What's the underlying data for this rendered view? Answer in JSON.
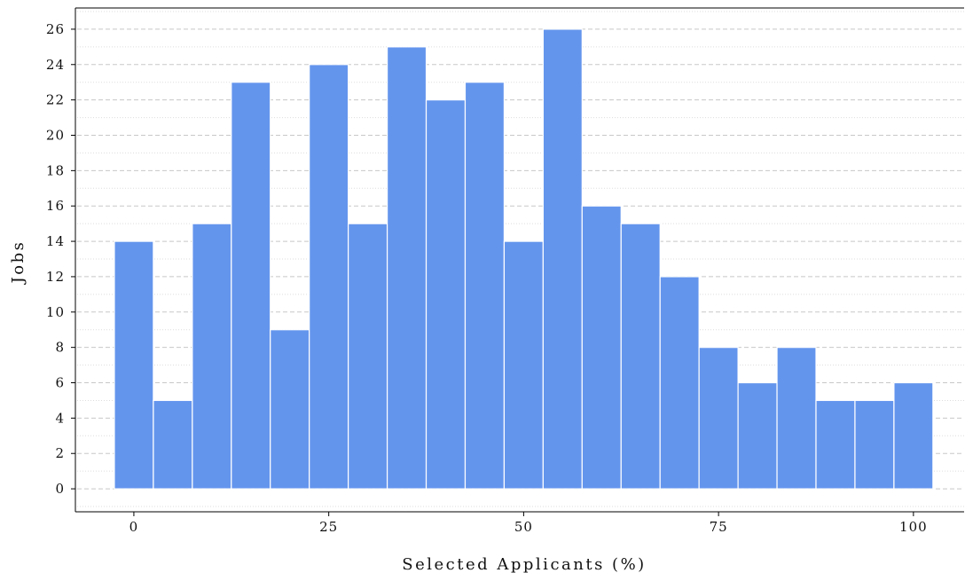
{
  "chart_data": {
    "type": "bar",
    "subtype": "histogram",
    "xlabel": "Selected Applicants (%)",
    "ylabel": "Jobs",
    "bin_width": 5,
    "bins": [
      {
        "center": 0,
        "count": 14
      },
      {
        "center": 5,
        "count": 5
      },
      {
        "center": 10,
        "count": 15
      },
      {
        "center": 15,
        "count": 23
      },
      {
        "center": 20,
        "count": 9
      },
      {
        "center": 25,
        "count": 24
      },
      {
        "center": 30,
        "count": 15
      },
      {
        "center": 35,
        "count": 25
      },
      {
        "center": 40,
        "count": 22
      },
      {
        "center": 45,
        "count": 23
      },
      {
        "center": 50,
        "count": 14
      },
      {
        "center": 55,
        "count": 26
      },
      {
        "center": 60,
        "count": 16
      },
      {
        "center": 65,
        "count": 15
      },
      {
        "center": 70,
        "count": 12
      },
      {
        "center": 75,
        "count": 8
      },
      {
        "center": 80,
        "count": 6
      },
      {
        "center": 85,
        "count": 8
      },
      {
        "center": 90,
        "count": 5
      },
      {
        "center": 95,
        "count": 5
      },
      {
        "center": 100,
        "count": 6
      }
    ],
    "xlim": [
      -7.5,
      106.5
    ],
    "ylim": [
      -1.3,
      27.2
    ],
    "xticks": [
      0,
      25,
      50,
      75,
      100
    ],
    "yticks": [
      0,
      2,
      4,
      6,
      8,
      10,
      12,
      14,
      16,
      18,
      20,
      22,
      24,
      26
    ],
    "grid": true,
    "bar_color": "#6495ed",
    "edge_color": "#ffffff"
  }
}
